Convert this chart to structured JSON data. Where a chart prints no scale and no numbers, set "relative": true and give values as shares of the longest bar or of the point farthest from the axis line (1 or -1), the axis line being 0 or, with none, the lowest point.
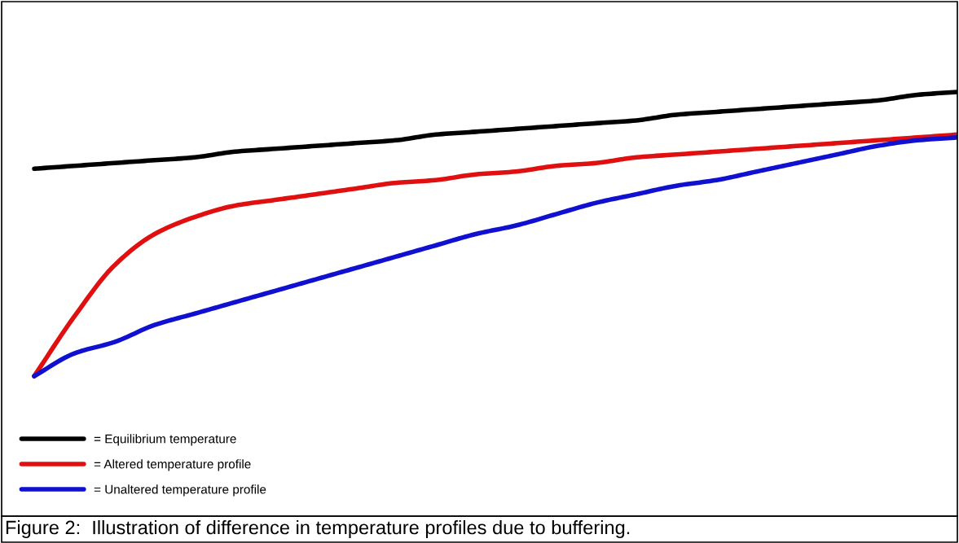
{
  "chart_data": {
    "type": "line",
    "relative": true,
    "categories": [
      null,
      null,
      null,
      null,
      null,
      null,
      null,
      null,
      null,
      null,
      null,
      null,
      null,
      null,
      null,
      null,
      null,
      null,
      null,
      null,
      null,
      null,
      null,
      null
    ],
    "series": [
      {
        "name": "= Equilibrium temperature",
        "color": "#000000",
        "values": [
          0.73,
          0.74,
          0.75,
          0.76,
          0.77,
          0.79,
          0.8,
          0.81,
          0.82,
          0.83,
          0.85,
          0.86,
          0.87,
          0.88,
          0.89,
          0.9,
          0.92,
          0.93,
          0.94,
          0.95,
          0.96,
          0.97,
          0.99,
          1.0
        ]
      },
      {
        "name": "= Altered temperature profile",
        "color": "#e01010",
        "values": [
          0,
          0.21,
          0.39,
          0.5,
          0.56,
          0.6,
          0.62,
          0.64,
          0.66,
          0.68,
          0.69,
          0.71,
          0.72,
          0.74,
          0.75,
          0.77,
          0.78,
          0.79,
          0.8,
          0.81,
          0.82,
          0.83,
          0.84,
          0.85
        ]
      },
      {
        "name": "= Unaltered temperature profile",
        "color": "#1010d0",
        "values": [
          0,
          0.08,
          0.12,
          0.18,
          0.22,
          0.26,
          0.3,
          0.34,
          0.38,
          0.42,
          0.46,
          0.5,
          0.53,
          0.57,
          0.61,
          0.64,
          0.67,
          0.69,
          0.72,
          0.75,
          0.78,
          0.81,
          0.83,
          0.84
        ]
      }
    ],
    "legend": "bottom left",
    "marker": "none",
    "line_style": "solid",
    "annotations": [
      "Figure 2:  Illustration of difference in temperature profiles due to buffering."
    ]
  }
}
